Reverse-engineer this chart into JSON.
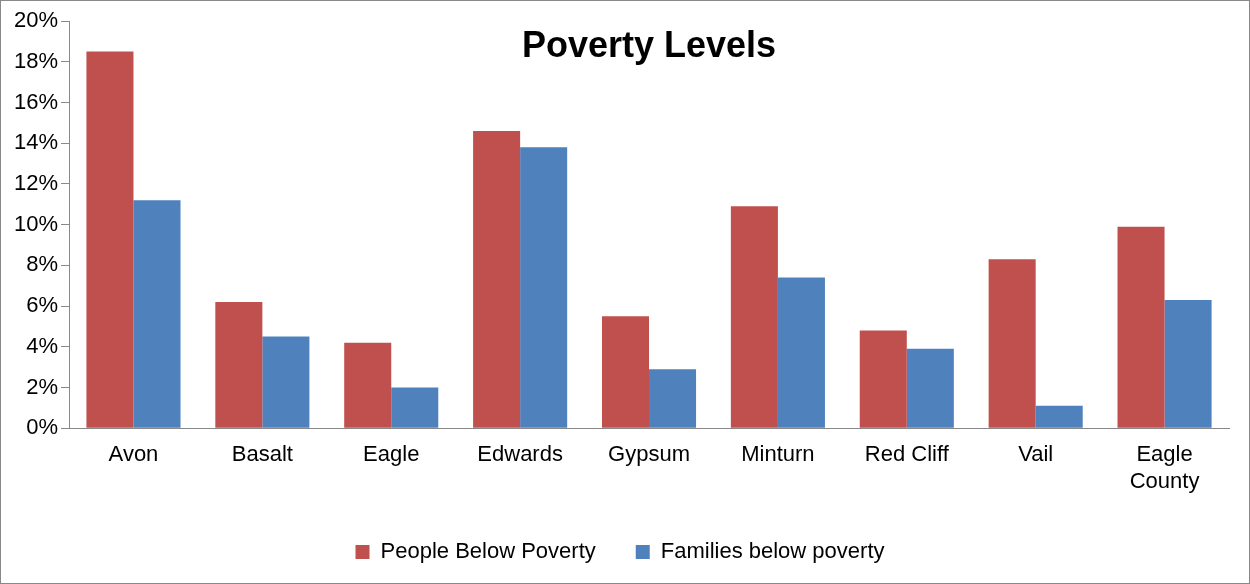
{
  "chart_data": {
    "type": "bar",
    "title": "Poverty Levels",
    "categories": [
      "Avon",
      "Basalt",
      "Eagle",
      "Edwards",
      "Gypsum",
      "Minturn",
      "Red Cliff",
      "Vail",
      "Eagle County"
    ],
    "series": [
      {
        "name": "People Below Poverty",
        "color": "#c0504d",
        "values": [
          18.5,
          6.2,
          4.2,
          14.6,
          5.5,
          10.9,
          4.8,
          8.3,
          9.9
        ]
      },
      {
        "name": "Families below poverty",
        "color": "#4f81bd",
        "values": [
          11.2,
          4.5,
          2.0,
          13.8,
          2.9,
          7.4,
          3.9,
          1.1,
          6.3
        ]
      }
    ],
    "ylim": [
      0,
      20
    ],
    "yticks": [
      {
        "value": 0,
        "label": "0%"
      },
      {
        "value": 2,
        "label": "2%"
      },
      {
        "value": 4,
        "label": "4%"
      },
      {
        "value": 6,
        "label": "6%"
      },
      {
        "value": 8,
        "label": "8%"
      },
      {
        "value": 10,
        "label": "10%"
      },
      {
        "value": 12,
        "label": "12%"
      },
      {
        "value": 14,
        "label": "14%"
      },
      {
        "value": 16,
        "label": "16%"
      },
      {
        "value": 18,
        "label": "18%"
      },
      {
        "value": 20,
        "label": "20%"
      }
    ],
    "grid": false,
    "legend": "bottom"
  }
}
